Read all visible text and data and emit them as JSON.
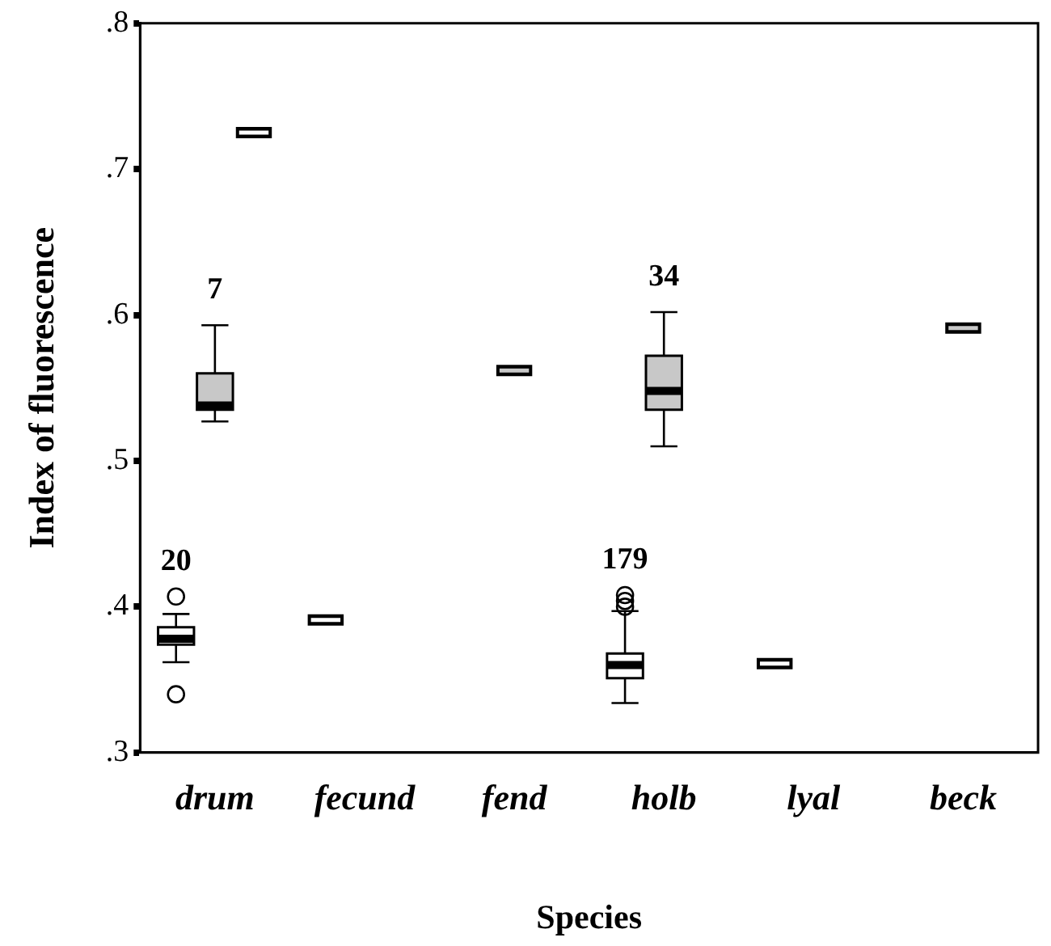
{
  "chart_data": {
    "type": "box",
    "xlabel": "Species",
    "ylabel": "Index of fluorescence",
    "categories": [
      "drum",
      "fecund",
      "fend",
      "holb",
      "lyal",
      "beck"
    ],
    "ylim": [
      0.3,
      0.8
    ],
    "yticks": [
      {
        "value": 0.3,
        "label": ".3"
      },
      {
        "value": 0.4,
        "label": ".4"
      },
      {
        "value": 0.5,
        "label": ".5"
      },
      {
        "value": 0.6,
        "label": ".6"
      },
      {
        "value": 0.7,
        "label": ".7"
      },
      {
        "value": 0.8,
        "label": ".8"
      }
    ],
    "grid": false,
    "legend": false,
    "series": [
      {
        "color": "#ffffff",
        "value_labels": [
          "20",
          null,
          null,
          "179",
          null,
          null
        ],
        "boxes": [
          {
            "low": 0.362,
            "q1": 0.374,
            "median": 0.378,
            "q3": 0.386,
            "high": 0.395,
            "outliers": [
              0.407,
              0.34
            ]
          },
          {
            "low": 0.391,
            "q1": 0.391,
            "median": 0.391,
            "q3": 0.391,
            "high": 0.391
          },
          null,
          {
            "low": 0.334,
            "q1": 0.351,
            "median": 0.36,
            "q3": 0.368,
            "high": 0.397,
            "outliers": [
              0.4,
              0.404,
              0.408
            ]
          },
          {
            "low": 0.361,
            "q1": 0.361,
            "median": 0.361,
            "q3": 0.361,
            "high": 0.361
          },
          null
        ]
      },
      {
        "color": "#c8c8c8",
        "value_labels": [
          "7",
          null,
          null,
          "34",
          null,
          null
        ],
        "boxes": [
          {
            "low": 0.527,
            "q1": 0.535,
            "median": 0.538,
            "q3": 0.56,
            "high": 0.593
          },
          null,
          {
            "low": 0.562,
            "q1": 0.562,
            "median": 0.562,
            "q3": 0.562,
            "high": 0.562
          },
          {
            "low": 0.51,
            "q1": 0.535,
            "median": 0.548,
            "q3": 0.572,
            "high": 0.602
          },
          null,
          {
            "low": 0.591,
            "q1": 0.591,
            "median": 0.591,
            "q3": 0.591,
            "high": 0.591
          }
        ]
      },
      {
        "color": "#ffffff",
        "boxes": [
          {
            "low": 0.725,
            "q1": 0.725,
            "median": 0.725,
            "q3": 0.725,
            "high": 0.725
          },
          null,
          null,
          null,
          null,
          null
        ]
      }
    ]
  }
}
